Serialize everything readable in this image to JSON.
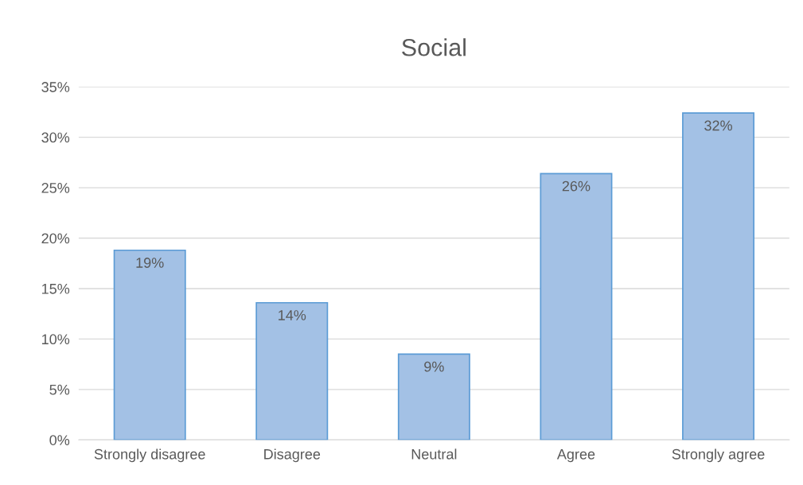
{
  "chart_data": {
    "type": "bar",
    "title": "Social",
    "categories": [
      "Strongly disagree",
      "Disagree",
      "Neutral",
      "Agree",
      "Strongly agree"
    ],
    "values": [
      18.8,
      13.6,
      8.5,
      26.4,
      32.4
    ],
    "value_labels": [
      "19%",
      "14%",
      "9%",
      "26%",
      "32%"
    ],
    "color": "#a3c1e5",
    "ylim": [
      0,
      35
    ],
    "yticks": [
      {
        "value": 0,
        "label": "0%"
      },
      {
        "value": 5,
        "label": "5%"
      },
      {
        "value": 10,
        "label": "10%"
      },
      {
        "value": 15,
        "label": "15%"
      },
      {
        "value": 20,
        "label": "20%"
      },
      {
        "value": 25,
        "label": "25%"
      },
      {
        "value": 30,
        "label": "30%"
      },
      {
        "value": 35,
        "label": "35%"
      }
    ],
    "grid": "y"
  }
}
